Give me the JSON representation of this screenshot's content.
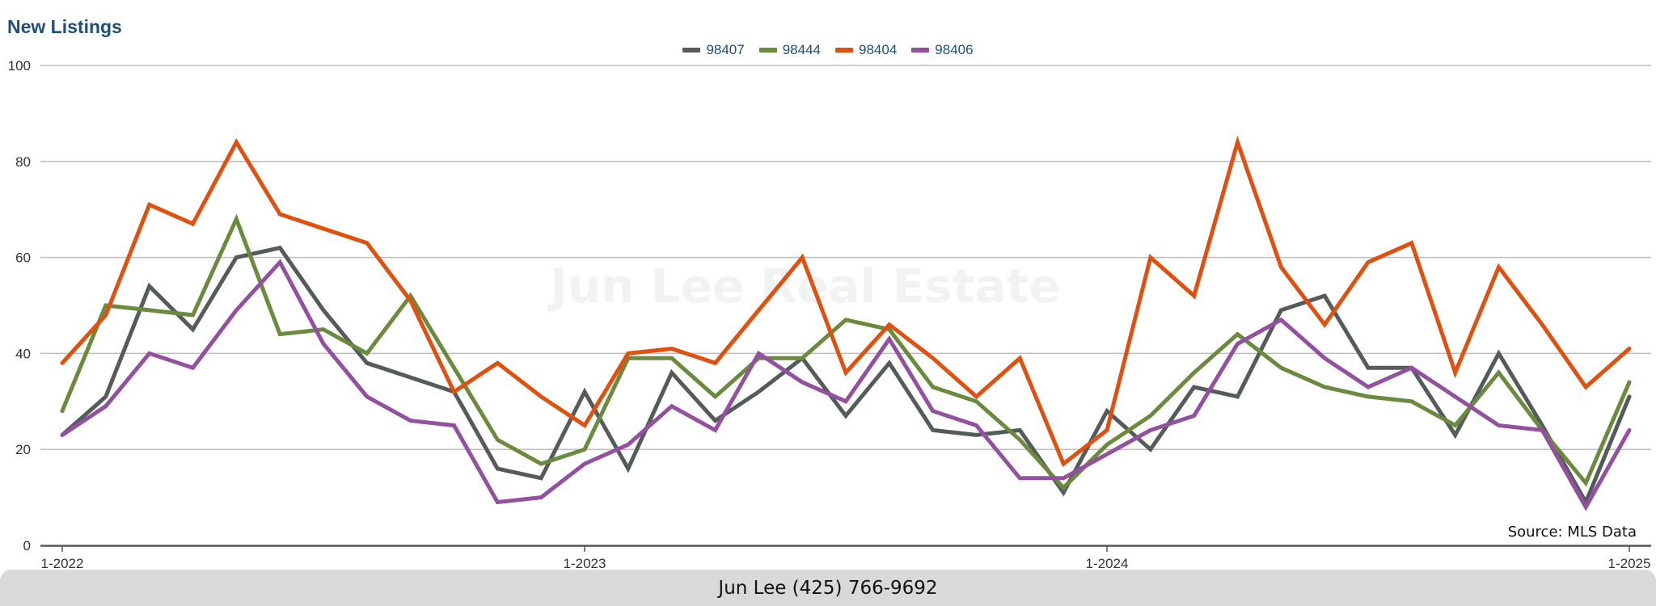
{
  "chart_data": {
    "type": "line",
    "title": "New Listings",
    "x": [
      "1-2022",
      "2-2022",
      "3-2022",
      "4-2022",
      "5-2022",
      "6-2022",
      "7-2022",
      "8-2022",
      "9-2022",
      "10-2022",
      "11-2022",
      "12-2022",
      "1-2023",
      "2-2023",
      "3-2023",
      "4-2023",
      "5-2023",
      "6-2023",
      "7-2023",
      "8-2023",
      "9-2023",
      "10-2023",
      "11-2023",
      "12-2023",
      "1-2024",
      "2-2024",
      "3-2024",
      "4-2024",
      "5-2024",
      "6-2024",
      "7-2024",
      "8-2024",
      "9-2024",
      "10-2024",
      "11-2024",
      "12-2024",
      "1-2025"
    ],
    "x_tick_labels": [
      "1-2022",
      "1-2023",
      "1-2024",
      "1-2025"
    ],
    "y_ticks": [
      0,
      20,
      40,
      60,
      80,
      100
    ],
    "ylim": [
      0,
      100
    ],
    "grid": true,
    "legend_position": "top-center",
    "watermark": "Jun Lee Real Estate",
    "source_note": "Source: MLS Data",
    "footer": "Jun Lee (425) 766-9692",
    "series": [
      {
        "name": "98407",
        "color": "#555b5b",
        "values": [
          23,
          31,
          54,
          45,
          60,
          62,
          49,
          38,
          35,
          32,
          16,
          14,
          32,
          16,
          36,
          26,
          32,
          39,
          27,
          38,
          24,
          23,
          24,
          11,
          28,
          20,
          33,
          31,
          49,
          52,
          37,
          37,
          23,
          40,
          25,
          9,
          31
        ]
      },
      {
        "name": "98444",
        "color": "#6a8a3e",
        "values": [
          28,
          50,
          49,
          48,
          68,
          44,
          45,
          40,
          52,
          37,
          22,
          17,
          20,
          39,
          39,
          31,
          39,
          39,
          47,
          45,
          33,
          30,
          22,
          12,
          21,
          27,
          36,
          44,
          37,
          33,
          31,
          30,
          25,
          36,
          24,
          13,
          34
        ]
      },
      {
        "name": "98404",
        "color": "#e0500f",
        "values": [
          38,
          48,
          71,
          67,
          84,
          69,
          66,
          63,
          51,
          32,
          38,
          31,
          25,
          40,
          41,
          38,
          49,
          60,
          36,
          46,
          39,
          31,
          39,
          17,
          24,
          60,
          52,
          84,
          58,
          46,
          59,
          63,
          36,
          58,
          46,
          33,
          41
        ]
      },
      {
        "name": "98406",
        "color": "#9450a0",
        "values": [
          23,
          29,
          40,
          37,
          49,
          59,
          42,
          31,
          26,
          25,
          9,
          10,
          17,
          21,
          29,
          24,
          40,
          34,
          30,
          43,
          28,
          25,
          14,
          14,
          19,
          24,
          27,
          42,
          47,
          39,
          33,
          37,
          31,
          25,
          24,
          8,
          24
        ]
      }
    ]
  }
}
